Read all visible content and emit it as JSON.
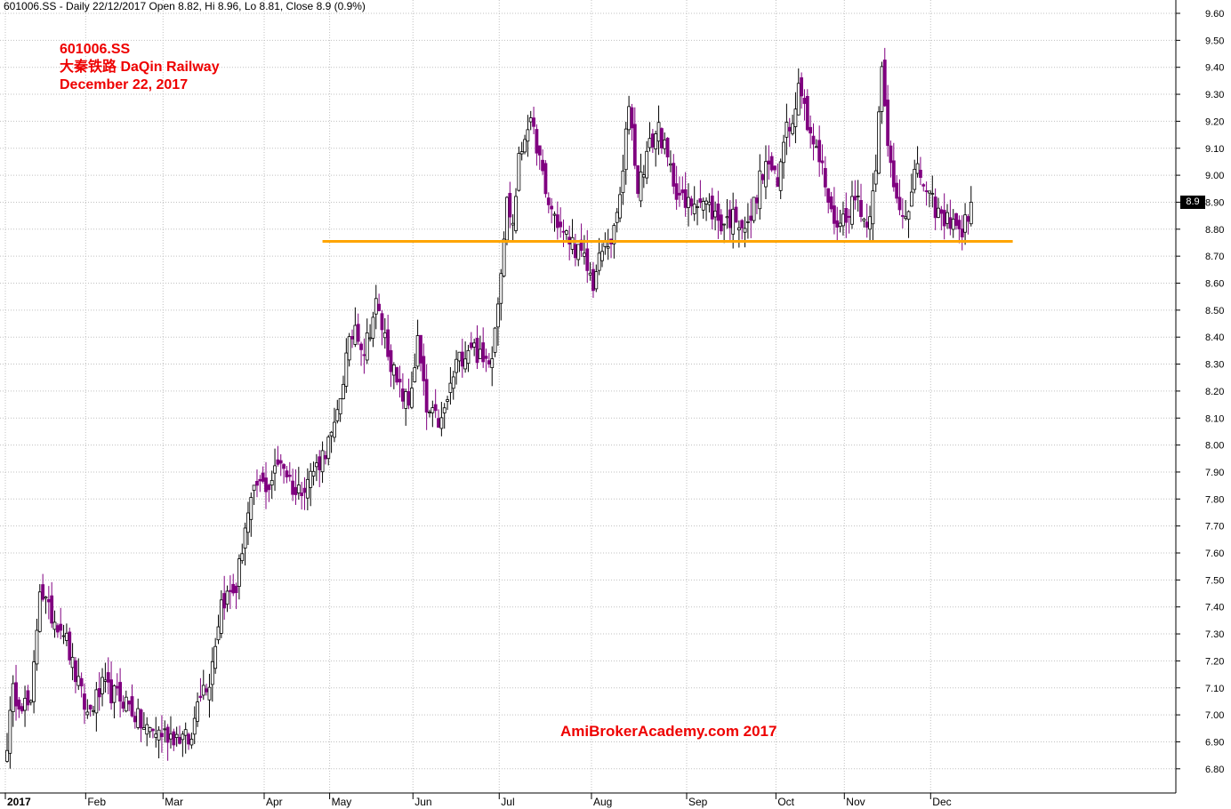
{
  "header": {
    "info": "601006.SS - Daily 22/12/2017 Open 8.82, Hi 8.96, Lo 8.81, Close 8.9 (0.9%)"
  },
  "title_block": {
    "ticker": "601006.SS",
    "name": "大秦铁路 DaQin Railway",
    "date": "December 22, 2017"
  },
  "watermark": "AmiBrokerAcademy.com 2017",
  "last_price_label": "8.9",
  "colors": {
    "up_candle": "#000000",
    "down_candle": "#800080",
    "support_line": "#ffa500",
    "text_accent": "#ee0000",
    "grid": "#c0c0c0"
  },
  "chart_data": {
    "type": "candlestick",
    "title": "601006.SS",
    "ylim": [
      6.75,
      9.65
    ],
    "y_ticks": [
      "6.80",
      "6.90",
      "7.00",
      "7.10",
      "7.20",
      "7.30",
      "7.40",
      "7.50",
      "7.60",
      "7.70",
      "7.80",
      "7.90",
      "8.00",
      "8.10",
      "8.20",
      "8.30",
      "8.40",
      "8.50",
      "8.60",
      "8.70",
      "8.80",
      "8.90",
      "9.00",
      "9.10",
      "9.20",
      "9.30",
      "9.40",
      "9.50",
      "9.60"
    ],
    "x_ticks": [
      {
        "label": "2017",
        "index": 0
      },
      {
        "label": "Feb",
        "index": 27
      },
      {
        "label": "Mar",
        "index": 53
      },
      {
        "label": "Apr",
        "index": 87
      },
      {
        "label": "May",
        "index": 109
      },
      {
        "label": "Jun",
        "index": 137
      },
      {
        "label": "Jul",
        "index": 166
      },
      {
        "label": "Aug",
        "index": 197
      },
      {
        "label": "Sep",
        "index": 229
      },
      {
        "label": "Oct",
        "index": 259
      },
      {
        "label": "Nov",
        "index": 282
      },
      {
        "label": "Dec",
        "index": 311
      }
    ],
    "support_line": {
      "value": 8.755,
      "from_index": 106,
      "to_index": 338
    },
    "grid": true,
    "last_close": 8.9,
    "anchors": [
      [
        0,
        6.9
      ],
      [
        2,
        7.08
      ],
      [
        8,
        7.02
      ],
      [
        11,
        7.48
      ],
      [
        14,
        7.38
      ],
      [
        19,
        7.32
      ],
      [
        22,
        7.18
      ],
      [
        27,
        7.0
      ],
      [
        32,
        7.1
      ],
      [
        35,
        7.08
      ],
      [
        40,
        7.05
      ],
      [
        46,
        6.95
      ],
      [
        53,
        6.93
      ],
      [
        58,
        6.92
      ],
      [
        62,
        6.9
      ],
      [
        64,
        7.08
      ],
      [
        68,
        7.13
      ],
      [
        72,
        7.42
      ],
      [
        77,
        7.47
      ],
      [
        80,
        7.7
      ],
      [
        84,
        7.85
      ],
      [
        88,
        7.85
      ],
      [
        92,
        7.95
      ],
      [
        97,
        7.82
      ],
      [
        104,
        7.92
      ],
      [
        110,
        8.05
      ],
      [
        114,
        8.32
      ],
      [
        117,
        8.45
      ],
      [
        120,
        8.35
      ],
      [
        124,
        8.52
      ],
      [
        127,
        8.4
      ],
      [
        131,
        8.22
      ],
      [
        135,
        8.15
      ],
      [
        138,
        8.38
      ],
      [
        141,
        8.12
      ],
      [
        146,
        8.08
      ],
      [
        151,
        8.3
      ],
      [
        156,
        8.38
      ],
      [
        160,
        8.3
      ],
      [
        163,
        8.35
      ],
      [
        165,
        8.55
      ],
      [
        168,
        8.9
      ],
      [
        170,
        8.82
      ],
      [
        172,
        9.05
      ],
      [
        175,
        9.2
      ],
      [
        178,
        9.12
      ],
      [
        181,
        8.92
      ],
      [
        184,
        8.85
      ],
      [
        187,
        8.78
      ],
      [
        190,
        8.75
      ],
      [
        194,
        8.68
      ],
      [
        197,
        8.6
      ],
      [
        200,
        8.72
      ],
      [
        204,
        8.78
      ],
      [
        207,
        9.0
      ],
      [
        209,
        9.28
      ],
      [
        212,
        8.95
      ],
      [
        215,
        9.08
      ],
      [
        219,
        9.18
      ],
      [
        222,
        9.05
      ],
      [
        225,
        8.95
      ],
      [
        228,
        8.88
      ],
      [
        232,
        8.92
      ],
      [
        236,
        8.88
      ],
      [
        240,
        8.82
      ],
      [
        245,
        8.85
      ],
      [
        249,
        8.8
      ],
      [
        253,
        8.98
      ],
      [
        256,
        9.05
      ],
      [
        259,
        8.95
      ],
      [
        262,
        9.22
      ],
      [
        264,
        9.18
      ],
      [
        266,
        9.38
      ],
      [
        268,
        9.25
      ],
      [
        271,
        9.12
      ],
      [
        274,
        9.02
      ],
      [
        277,
        8.85
      ],
      [
        280,
        8.82
      ],
      [
        283,
        8.88
      ],
      [
        286,
        8.92
      ],
      [
        289,
        8.8
      ],
      [
        292,
        9.05
      ],
      [
        294,
        9.38
      ],
      [
        296,
        9.1
      ],
      [
        299,
        8.92
      ],
      [
        303,
        8.85
      ],
      [
        306,
        9.05
      ],
      [
        309,
        8.92
      ],
      [
        312,
        8.88
      ],
      [
        315,
        8.82
      ],
      [
        318,
        8.85
      ],
      [
        320,
        8.78
      ],
      [
        322,
        8.82
      ],
      [
        324,
        8.9
      ]
    ]
  }
}
